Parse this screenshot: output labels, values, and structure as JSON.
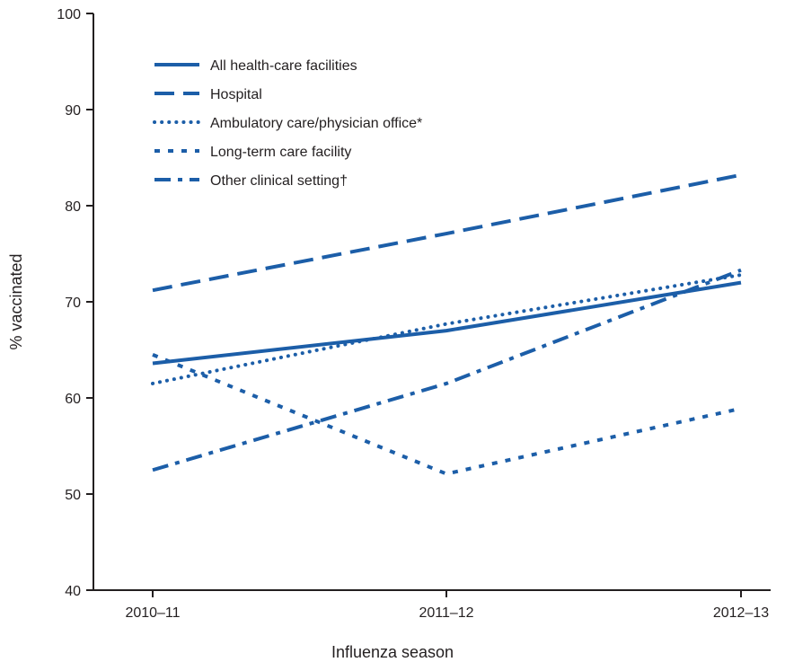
{
  "chart_data": {
    "type": "line",
    "x_label": "Influenza season",
    "y_label": "% vaccinated",
    "categories": [
      "2010–11",
      "2011–12",
      "2012–13"
    ],
    "series": [
      {
        "name": "All health-care facilities",
        "color": "#1c5ea8",
        "values": [
          63.6,
          67.0,
          72.0
        ]
      },
      {
        "name": "Hospital",
        "color": "#1c5ea8",
        "values": [
          71.2,
          77.1,
          83.2
        ]
      },
      {
        "name": "Ambulatory care/physician office*",
        "color": "#1c5ea8",
        "values": [
          61.5,
          67.7,
          72.8
        ]
      },
      {
        "name": "Long-term care facility",
        "color": "#1c5ea8",
        "values": [
          64.5,
          52.1,
          58.9
        ]
      },
      {
        "name": "Other clinical setting†",
        "color": "#1c5ea8",
        "values": [
          52.5,
          61.5,
          73.3
        ]
      }
    ],
    "ylim": [
      40,
      100
    ],
    "yticks": [
      40,
      50,
      60,
      70,
      80,
      90,
      100
    ],
    "legend": "upper left"
  }
}
